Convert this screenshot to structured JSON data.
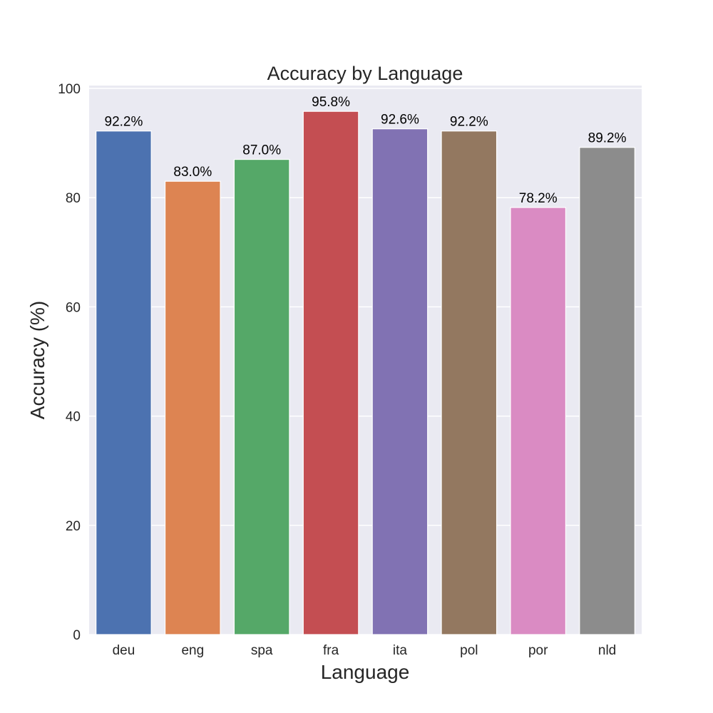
{
  "chart_data": {
    "type": "bar",
    "title": "Accuracy by Language",
    "xlabel": "Language",
    "ylabel": "Accuracy (%)",
    "categories": [
      "deu",
      "eng",
      "spa",
      "fra",
      "ita",
      "pol",
      "por",
      "nld"
    ],
    "values": [
      92.2,
      83.0,
      87.0,
      95.8,
      92.6,
      92.2,
      78.2,
      89.2
    ],
    "value_labels": [
      "92.2%",
      "83.0%",
      "87.0%",
      "95.8%",
      "92.6%",
      "92.2%",
      "78.2%",
      "89.2%"
    ],
    "colors": [
      "#4c72b0",
      "#dd8452",
      "#55a868",
      "#c44e52",
      "#8172b3",
      "#937860",
      "#da8bc3",
      "#8c8c8c"
    ],
    "ylim": [
      0,
      100
    ],
    "yticks": [
      0,
      20,
      40,
      60,
      80,
      100
    ],
    "ytick_labels": [
      "0",
      "20",
      "40",
      "60",
      "80",
      "100"
    ],
    "grid": true,
    "background_color": "#eaeaf2",
    "legend": "none"
  }
}
